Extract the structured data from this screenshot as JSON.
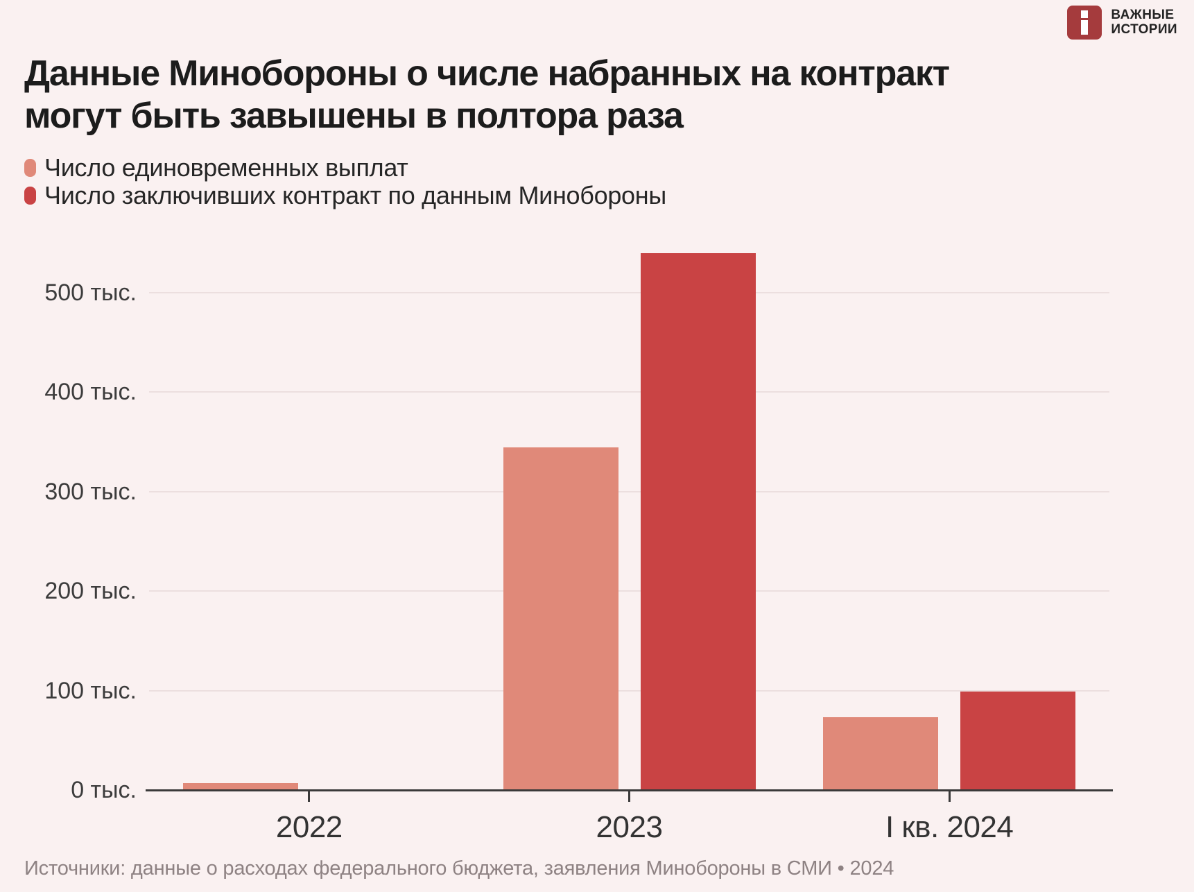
{
  "page": {
    "background": "#faf1f1"
  },
  "logo": {
    "brand_line1": "ВАЖНЫЕ",
    "brand_line2": "ИСТОРИИ",
    "icon_color": "#a53b3d"
  },
  "header": {
    "title_lines": [
      "Данные Минобороны о числе набранных на контракт",
      "могут быть завышены в полтора раза"
    ]
  },
  "legend": {
    "items": [
      {
        "label": "Число единовременных выплат",
        "color": "#e08979"
      },
      {
        "label": "Число заключивших контракт по данным Минобороны",
        "color": "#c94344"
      }
    ]
  },
  "chart_data": {
    "type": "bar",
    "categories": [
      "2022",
      "2023",
      "I кв. 2024"
    ],
    "series": [
      {
        "name": "Число единовременных выплат",
        "color": "#e08979",
        "values": [
          8,
          345,
          74
        ]
      },
      {
        "name": "Число заключивших контракт по данным Минобороны",
        "color": "#c94344",
        "values": [
          null,
          540,
          100
        ]
      }
    ],
    "unit": "тыс.",
    "ylabel": "",
    "xlabel": "",
    "ylim": [
      0,
      560
    ],
    "yticks": [
      0,
      100,
      200,
      300,
      400,
      500
    ],
    "ytick_suffix": " тыс.",
    "grid": true,
    "legend_position": "top-left"
  },
  "footer": {
    "source": "Источники: данные о расходах федерального бюджета, заявления Минобороны в СМИ • 2024"
  }
}
